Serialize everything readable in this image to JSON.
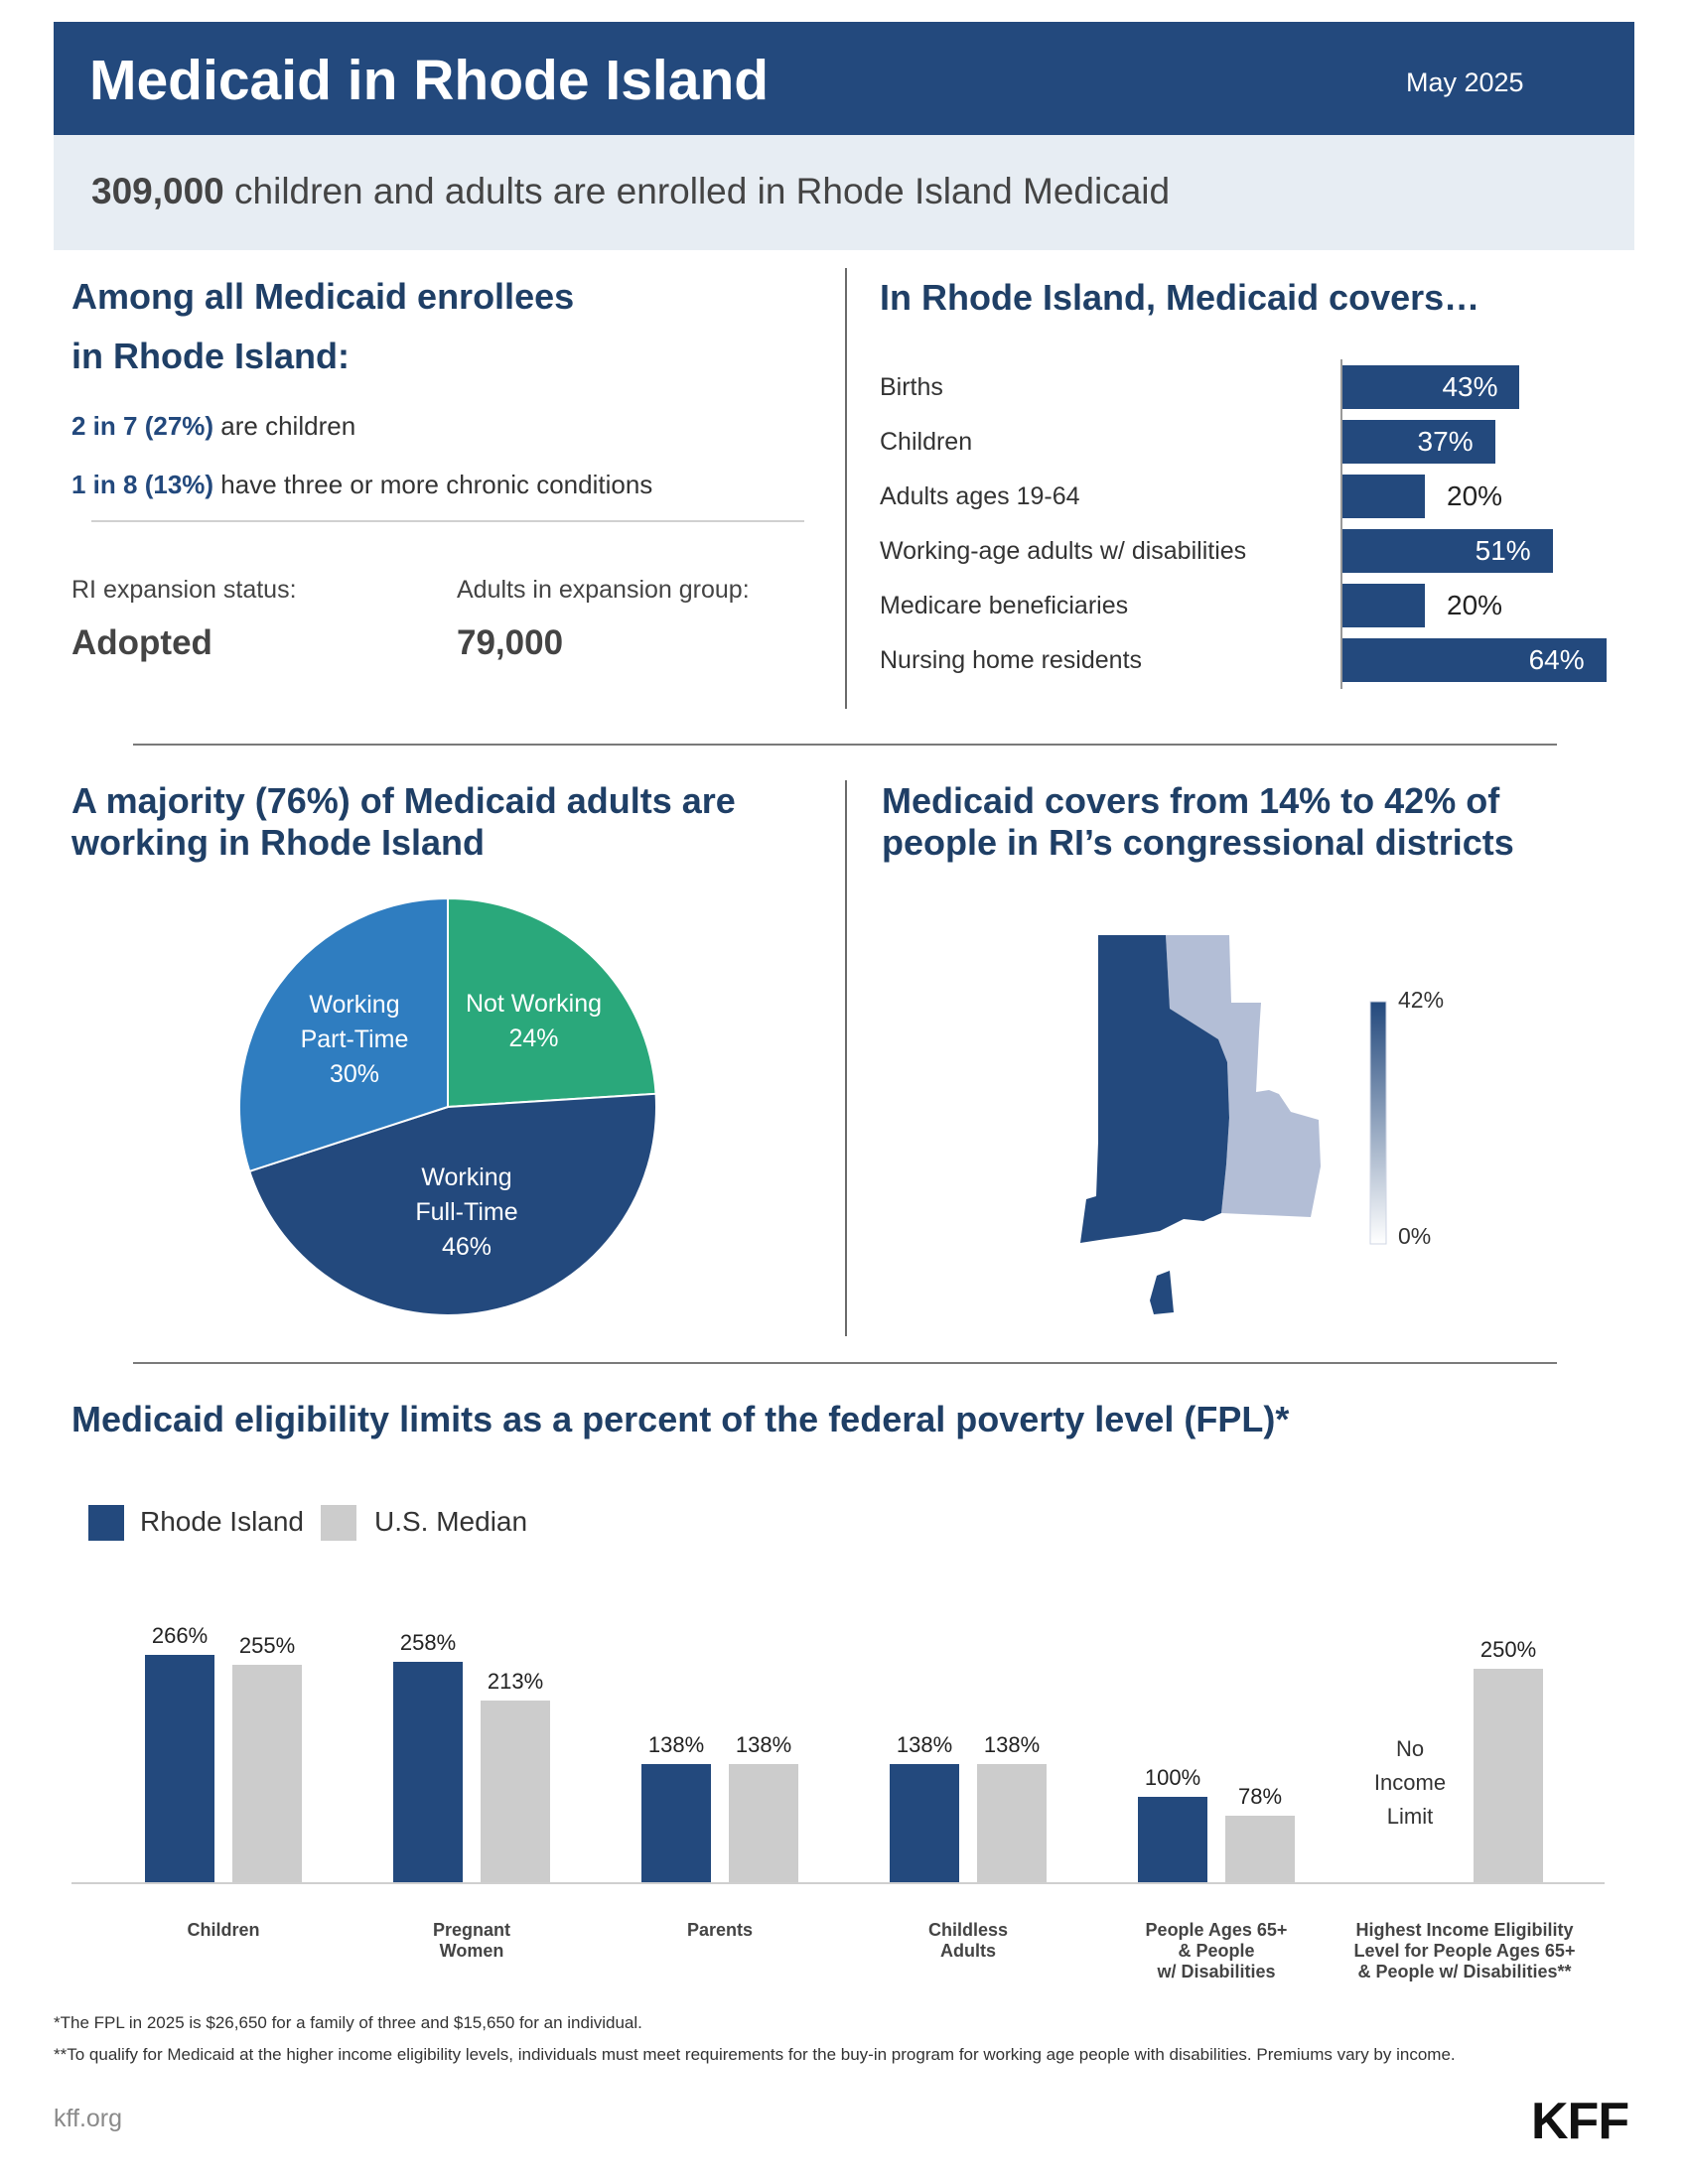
{
  "header": {
    "title": "Medicaid in Rhode Island",
    "date": "May 2025",
    "enrolled_number": "309,000",
    "enrolled_text": "children and adults are enrolled in Rhode Island Medicaid"
  },
  "enrollees": {
    "heading_line1": "Among all Medicaid enrollees",
    "heading_line2": "in Rhode Island:",
    "stat1_bold": "2 in 7 (27%)",
    "stat1_text": "are children",
    "stat2_bold": "1 in 8 (13%)",
    "stat2_text": "have three or more chronic conditions",
    "expansion_label": "RI expansion status:",
    "expansion_value": "Adopted",
    "adults_label": "Adults in expansion group:",
    "adults_value": "79,000"
  },
  "covers": {
    "heading": "In Rhode Island, Medicaid covers…",
    "items": [
      {
        "label": "Births",
        "value": 43,
        "display": "43%"
      },
      {
        "label": "Children",
        "value": 37,
        "display": "37%"
      },
      {
        "label": "Adults ages 19-64",
        "value": 20,
        "display": "20%"
      },
      {
        "label": "Working-age adults w/ disabilities",
        "value": 51,
        "display": "51%"
      },
      {
        "label": "Medicare beneficiaries",
        "value": 20,
        "display": "20%"
      },
      {
        "label": "Nursing home residents",
        "value": 64,
        "display": "64%"
      }
    ]
  },
  "working": {
    "heading_line1": "A majority (76%) of Medicaid adults are",
    "heading_line2": "working in Rhode Island",
    "slices": [
      {
        "line1": "Not Working",
        "line2": "",
        "pct": "24%",
        "value": 24,
        "color": "#2aa87b"
      },
      {
        "line1": "Working",
        "line2": "Full-Time",
        "pct": "46%",
        "value": 46,
        "color": "#23497d"
      },
      {
        "line1": "Working",
        "line2": "Part-Time",
        "pct": "30%",
        "value": 30,
        "color": "#2f7dc0"
      }
    ]
  },
  "districts": {
    "heading_line1": "Medicaid covers from 14% to 42% of",
    "heading_line2": "people in RI’s congressional districts",
    "scale_max": "42%",
    "scale_min": "0%",
    "dark_color": "#23497d",
    "light_color": "#b3bed6"
  },
  "eligibility": {
    "heading": "Medicaid eligibility limits as a percent of the federal poverty level (FPL)*",
    "legend_ri": "Rhode Island",
    "legend_us": "U.S. Median",
    "no_limit_line1": "No",
    "no_limit_line2": "Income",
    "no_limit_line3": "Limit"
  },
  "chart_data": {
    "type": "bar",
    "title": "Medicaid eligibility limits as a percent of the federal poverty level (FPL)*",
    "categories": [
      [
        "Children"
      ],
      [
        "Pregnant",
        "Women"
      ],
      [
        "Parents"
      ],
      [
        "Childless",
        "Adults"
      ],
      [
        "People Ages 65+",
        "& People",
        "w/ Disabilities"
      ],
      [
        "Highest Income Eligibility",
        "Level for People Ages 65+",
        "& People w/ Disabilities**"
      ]
    ],
    "series": [
      {
        "name": "Rhode Island",
        "color": "#23497d",
        "values": [
          266,
          258,
          138,
          138,
          100,
          null
        ],
        "labels": [
          "266%",
          "258%",
          "138%",
          "138%",
          "100%",
          ""
        ]
      },
      {
        "name": "U.S. Median",
        "color": "#cccccc",
        "values": [
          255,
          213,
          138,
          138,
          78,
          250
        ],
        "labels": [
          "255%",
          "213%",
          "138%",
          "138%",
          "78%",
          "250%"
        ]
      }
    ],
    "ylim": [
      0,
      266
    ],
    "grid": false,
    "legend": "top-left"
  },
  "footer": {
    "note1": "*The FPL in 2025 is $26,650 for a family of three and $15,650 for an individual.",
    "note2": "**To qualify for Medicaid at the higher income eligibility levels, individuals must meet requirements for the buy-in program for working age people with disabilities. Premiums vary by income.",
    "site": "kff.org",
    "logo": "KFF"
  }
}
